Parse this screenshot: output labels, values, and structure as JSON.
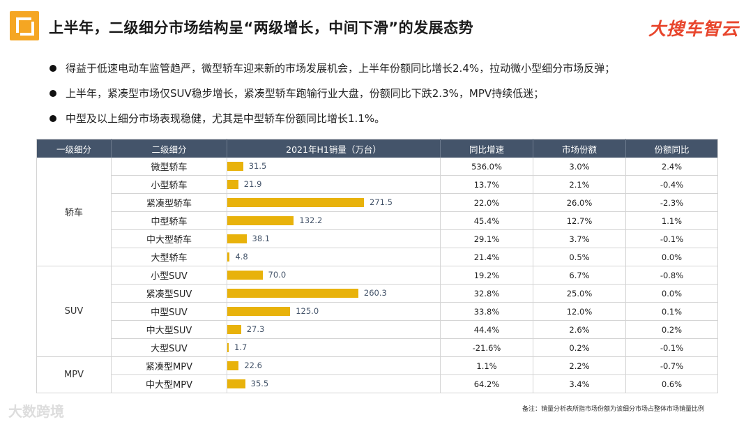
{
  "header": {
    "title": "上半年，二级细分市场结构呈“两级增长，中间下滑”的发展态势",
    "brand": "大搜车智云"
  },
  "bullets": [
    "得益于低速电动车监管趋严，微型轿车迎来新的市场发展机会，上半年份额同比增长2.4%，拉动微小型细分市场反弹；",
    "上半年，紧凑型市场仅SUV稳步增长，紧凑型轿车跑输行业大盘，份额同比下跌2.3%，MPV持续低迷；",
    "中型及以上细分市场表现稳健，尤其是中型轿车份额同比增长1.1%。"
  ],
  "table": {
    "headers": [
      "一级细分",
      "二级细分",
      "2021年H1销量（万台）",
      "同比增速",
      "市场份额",
      "份额同比"
    ],
    "groups": [
      {
        "name": "轿车",
        "rows": [
          {
            "sub": "微型轿车",
            "sales": "31.5",
            "growth": "536.0%",
            "share": "3.0%",
            "share_yoy": "2.4%"
          },
          {
            "sub": "小型轿车",
            "sales": "21.9",
            "growth": "13.7%",
            "share": "2.1%",
            "share_yoy": "-0.4%"
          },
          {
            "sub": "紧凑型轿车",
            "sales": "271.5",
            "growth": "22.0%",
            "share": "26.0%",
            "share_yoy": "-2.3%"
          },
          {
            "sub": "中型轿车",
            "sales": "132.2",
            "growth": "45.4%",
            "share": "12.7%",
            "share_yoy": "1.1%"
          },
          {
            "sub": "中大型轿车",
            "sales": "38.1",
            "growth": "29.1%",
            "share": "3.7%",
            "share_yoy": "-0.1%"
          },
          {
            "sub": "大型轿车",
            "sales": "4.8",
            "growth": "21.4%",
            "share": "0.5%",
            "share_yoy": "0.0%"
          }
        ]
      },
      {
        "name": "SUV",
        "rows": [
          {
            "sub": "小型SUV",
            "sales": "70.0",
            "growth": "19.2%",
            "share": "6.7%",
            "share_yoy": "-0.8%"
          },
          {
            "sub": "紧凑型SUV",
            "sales": "260.3",
            "growth": "32.8%",
            "share": "25.0%",
            "share_yoy": "0.0%"
          },
          {
            "sub": "中型SUV",
            "sales": "125.0",
            "growth": "33.8%",
            "share": "12.0%",
            "share_yoy": "0.1%"
          },
          {
            "sub": "中大型SUV",
            "sales": "27.3",
            "growth": "44.4%",
            "share": "2.6%",
            "share_yoy": "0.2%"
          },
          {
            "sub": "大型SUV",
            "sales": "1.7",
            "growth": "-21.6%",
            "share": "0.2%",
            "share_yoy": "-0.1%"
          }
        ]
      },
      {
        "name": "MPV",
        "rows": [
          {
            "sub": "紧凑型MPV",
            "sales": "22.6",
            "growth": "1.1%",
            "share": "2.2%",
            "share_yoy": "-0.7%"
          },
          {
            "sub": "中大型MPV",
            "sales": "35.5",
            "growth": "64.2%",
            "share": "3.4%",
            "share_yoy": "0.6%"
          }
        ]
      }
    ],
    "bar_max": 271.5,
    "bar_color": "#e8b20b",
    "header_color": "#44546a"
  },
  "footer": {
    "watermark": "大数跨境",
    "note": "备注：销量分析表所指市场份额为该细分市场占整体市场销量比例"
  }
}
